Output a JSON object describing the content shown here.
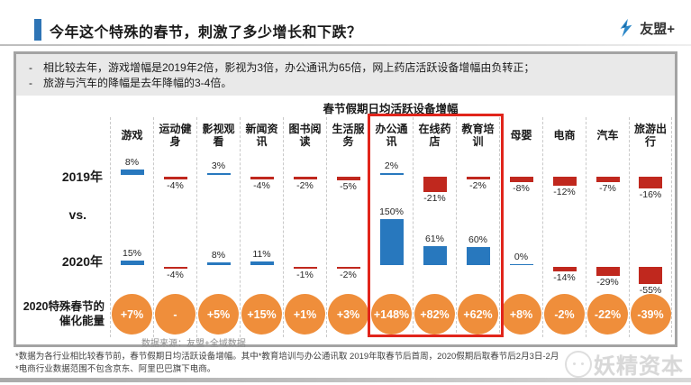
{
  "header": {
    "title": "今年这个特殊的春节，刺激了多少增长和下跌？",
    "logo_text": "友盟+"
  },
  "summary": {
    "bullets": [
      "相比较去年，游戏增幅是2019年2倍，影视为3倍，办公通讯为65倍，网上药店活跃设备增幅由负转正；",
      "旅游与汽车的降幅是去年降幅的3-4倍。"
    ]
  },
  "chart_data": {
    "type": "bar",
    "title": "春节假期日均活跃设备增幅",
    "categories": [
      "游戏",
      "运动健身",
      "影视观看",
      "新闻资讯",
      "图书阅读",
      "生活服务",
      "办公通讯",
      "在线药店",
      "教育培训",
      "母婴",
      "电商",
      "汽车",
      "旅游出行"
    ],
    "series": [
      {
        "name": "2019年",
        "values": [
          8,
          -4,
          3,
          -4,
          -2,
          -5,
          2,
          -21,
          -2,
          -8,
          -12,
          -7,
          -16
        ]
      },
      {
        "name": "2020年",
        "values": [
          15,
          -4,
          8,
          11,
          -1,
          -2,
          150,
          61,
          60,
          0,
          -14,
          -29,
          -55
        ]
      }
    ],
    "vs_label": "vs.",
    "catalyst_row": {
      "label": "2020特殊春节的 催化能量",
      "values": [
        "+7%",
        "-",
        "+5%",
        "+15%",
        "+1%",
        "+3%",
        "+148%",
        "+82%",
        "+62%",
        "+8%",
        "-2%",
        "-22%",
        "-39%"
      ]
    },
    "highlight_columns": [
      6,
      7,
      8
    ],
    "source": "数据来源：友盟+全域数据",
    "ylabel": "",
    "xlabel": "",
    "legend_position": "left-row-labels",
    "grid": "dashed-column-separators",
    "colors": {
      "positive_bar": "#2878be",
      "negative_bar": "#c0281e",
      "circle": "#ef8e3b",
      "highlight_border": "#e1251b"
    }
  },
  "footnotes": [
    "*数据为各行业相比较春节前，春节假期日均活跃设备增幅。其中*教育培训与办公通讯取 2019年取春节后首周，2020假期后取春节后2月3日-2月",
    "*电商行业数据范围不包含京东、阿里巴巴旗下电商。"
  ],
  "watermark": "妖精资本"
}
